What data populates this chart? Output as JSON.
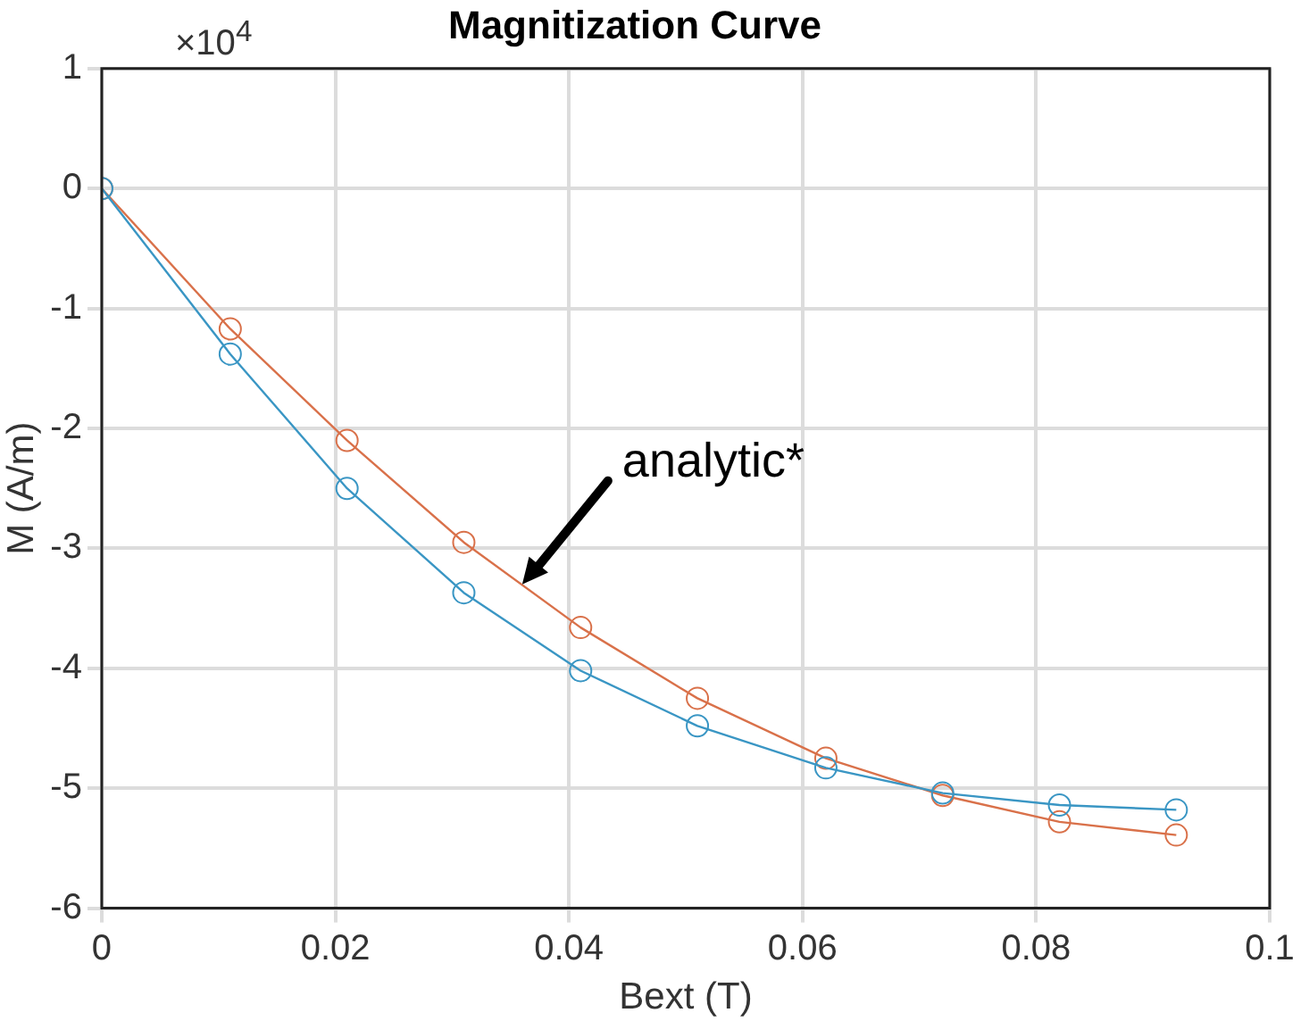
{
  "chart_data": {
    "type": "line",
    "title": "Magnitization Curve",
    "xlabel": "Bext (T)",
    "ylabel": "M (A/m)",
    "x": [
      0,
      0.011,
      0.021,
      0.031,
      0.041,
      0.051,
      0.062,
      0.072,
      0.082,
      0.092
    ],
    "series": [
      {
        "color": "#3a96c4",
        "values": [
          0,
          -1.38,
          -2.5,
          -3.37,
          -4.02,
          -4.48,
          -4.83,
          -5.04,
          -5.14,
          -5.18
        ]
      },
      {
        "color": "#d9714a",
        "values": [
          0,
          -1.17,
          -2.1,
          -2.95,
          -3.66,
          -4.25,
          -4.75,
          -5.06,
          -5.28,
          -5.39
        ]
      }
    ],
    "xlim": [
      0,
      0.1
    ],
    "xticks": [
      0,
      0.02,
      0.04,
      0.06,
      0.08,
      0.1
    ],
    "ylim": [
      -6,
      1
    ],
    "yticks": [
      -6,
      -5,
      -4,
      -3,
      -2,
      -1,
      0,
      1
    ],
    "annotations": [
      "×10$^{4}$",
      {
        "text": "analytic*",
        "x": 0.036,
        "y": -3.3
      }
    ],
    "grid": true,
    "legend": false,
    "marker": "circle",
    "line_style": "solid"
  }
}
